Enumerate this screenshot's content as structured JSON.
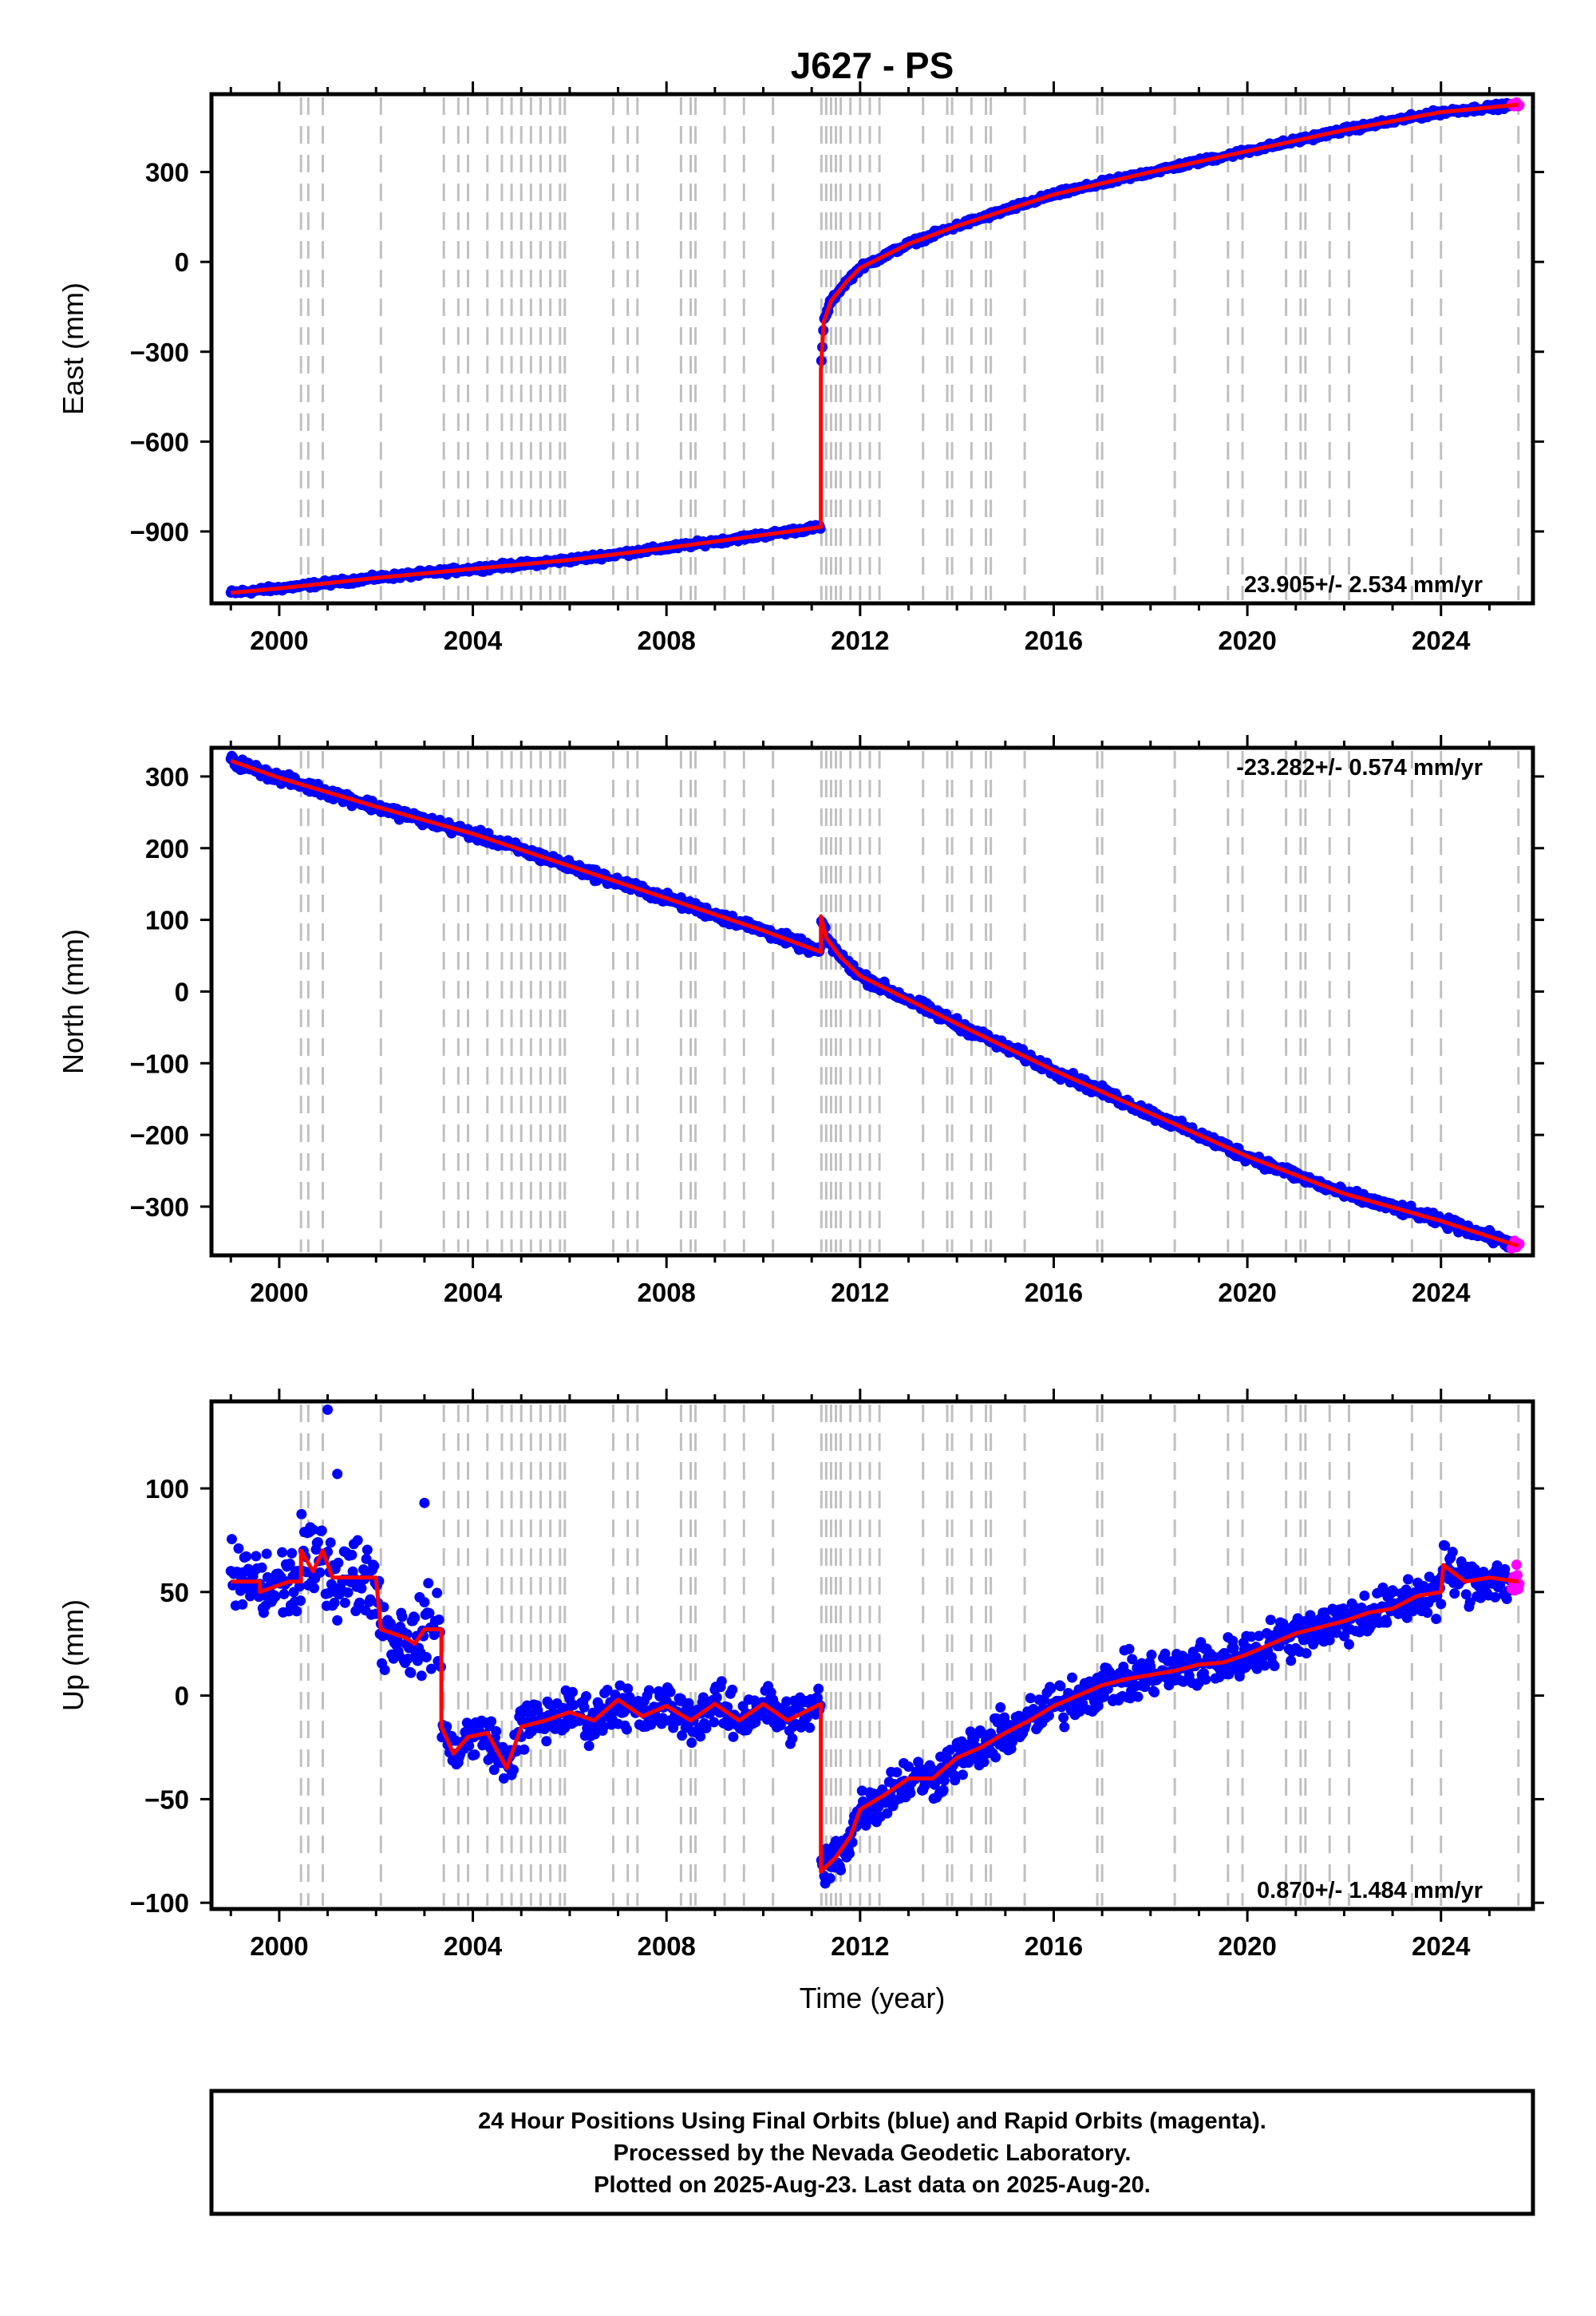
{
  "title": "J627 - PS",
  "xlabel": "Time (year)",
  "x_ticks": [
    "2000",
    "2004",
    "2008",
    "2012",
    "2016",
    "2020",
    "2024"
  ],
  "colors": {
    "final": "#0000ff",
    "rapid": "#ff00ff",
    "model": "#ff0000",
    "events": "#c0c0c0"
  },
  "footer": {
    "line1": "24 Hour Positions Using Final Orbits (blue) and Rapid Orbits (magenta).",
    "line2": "Processed by the Nevada Geodetic Laboratory.",
    "line3": "Plotted on 2025-Aug-23. Last data on 2025-Aug-20."
  },
  "chart_data": [
    {
      "type": "scatter",
      "component": "east",
      "ylabel": "East (mm)",
      "rate": "23.905+/- 2.534 mm/yr",
      "xlim": [
        1998.6,
        2025.9
      ],
      "ylim": [
        -1140,
        560
      ],
      "y_ticks": [
        "300",
        "0",
        "−300",
        "−600",
        "−900"
      ],
      "y_tick_values": [
        300,
        0,
        -300,
        -600,
        -900
      ],
      "trend": [
        [
          1999.0,
          -1105
        ],
        [
          2000.0,
          -1090
        ],
        [
          2002.0,
          -1055
        ],
        [
          2004.0,
          -1025
        ],
        [
          2006.0,
          -995
        ],
        [
          2008.0,
          -955
        ],
        [
          2010.0,
          -912
        ],
        [
          2011.19,
          -885
        ],
        [
          2011.19,
          -360
        ],
        [
          2011.25,
          -200
        ],
        [
          2011.4,
          -130
        ],
        [
          2011.7,
          -70
        ],
        [
          2012.0,
          -20
        ],
        [
          2013.0,
          60
        ],
        [
          2014.0,
          120
        ],
        [
          2016.0,
          225
        ],
        [
          2018.0,
          300
        ],
        [
          2020.0,
          370
        ],
        [
          2022.0,
          440
        ],
        [
          2024.0,
          500
        ],
        [
          2025.6,
          525
        ]
      ]
    },
    {
      "type": "scatter",
      "component": "north",
      "ylabel": "North (mm)",
      "rate": "-23.282+/- 0.574 mm/yr",
      "xlim": [
        1998.6,
        2025.9
      ],
      "ylim": [
        -368,
        340
      ],
      "y_ticks": [
        "300",
        "200",
        "100",
        "0",
        "−100",
        "−200",
        "−300"
      ],
      "y_tick_values": [
        300,
        200,
        100,
        0,
        -100,
        -200,
        -300
      ],
      "trend": [
        [
          1999.0,
          322
        ],
        [
          2000.0,
          298
        ],
        [
          2002.0,
          258
        ],
        [
          2004.0,
          220
        ],
        [
          2006.0,
          175
        ],
        [
          2008.0,
          130
        ],
        [
          2010.0,
          85
        ],
        [
          2011.19,
          55
        ],
        [
          2011.19,
          105
        ],
        [
          2011.3,
          75
        ],
        [
          2011.6,
          48
        ],
        [
          2012.0,
          22
        ],
        [
          2014.0,
          -45
        ],
        [
          2016.0,
          -110
        ],
        [
          2018.0,
          -170
        ],
        [
          2020.0,
          -230
        ],
        [
          2022.0,
          -282
        ],
        [
          2024.0,
          -320
        ],
        [
          2025.6,
          -355
        ]
      ]
    },
    {
      "type": "scatter",
      "component": "up",
      "ylabel": "Up (mm)",
      "rate": "0.870+/- 1.484 mm/yr",
      "xlim": [
        1998.6,
        2025.9
      ],
      "ylim": [
        -103,
        142
      ],
      "y_ticks": [
        "100",
        "50",
        "0",
        "−50",
        "−100"
      ],
      "y_tick_values": [
        100,
        50,
        0,
        -50,
        -100
      ],
      "outliers": [
        [
          2001.0,
          138
        ],
        [
          2001.2,
          107
        ],
        [
          2003.0,
          93
        ]
      ],
      "trend": [
        [
          1999.0,
          55
        ],
        [
          1999.6,
          55
        ],
        [
          1999.6,
          50
        ],
        [
          2000.2,
          55
        ],
        [
          2000.45,
          55
        ],
        [
          2000.45,
          70
        ],
        [
          2000.7,
          60
        ],
        [
          2000.9,
          70
        ],
        [
          2001.1,
          57
        ],
        [
          2002.0,
          57
        ],
        [
          2002.1,
          32
        ],
        [
          2002.6,
          28
        ],
        [
          2002.8,
          25
        ],
        [
          2003.0,
          32
        ],
        [
          2003.35,
          32
        ],
        [
          2003.35,
          -15
        ],
        [
          2003.6,
          -28
        ],
        [
          2003.9,
          -20
        ],
        [
          2004.3,
          -18
        ],
        [
          2004.7,
          -35
        ],
        [
          2005.0,
          -15
        ],
        [
          2005.5,
          -12
        ],
        [
          2006.0,
          -8
        ],
        [
          2006.5,
          -12
        ],
        [
          2007.0,
          -2
        ],
        [
          2007.5,
          -10
        ],
        [
          2008.0,
          -5
        ],
        [
          2008.5,
          -12
        ],
        [
          2009.0,
          -4
        ],
        [
          2009.5,
          -12
        ],
        [
          2010.0,
          -4
        ],
        [
          2010.5,
          -12
        ],
        [
          2011.19,
          -4
        ],
        [
          2011.19,
          -85
        ],
        [
          2011.5,
          -78
        ],
        [
          2011.8,
          -68
        ],
        [
          2012.0,
          -55
        ],
        [
          2012.5,
          -48
        ],
        [
          2013.0,
          -40
        ],
        [
          2013.5,
          -40
        ],
        [
          2014.0,
          -30
        ],
        [
          2014.5,
          -25
        ],
        [
          2015.0,
          -18
        ],
        [
          2015.5,
          -12
        ],
        [
          2016.0,
          -5
        ],
        [
          2016.5,
          0
        ],
        [
          2017.0,
          5
        ],
        [
          2017.5,
          8
        ],
        [
          2018.0,
          10
        ],
        [
          2018.5,
          12
        ],
        [
          2019.0,
          15
        ],
        [
          2019.5,
          16
        ],
        [
          2020.0,
          20
        ],
        [
          2020.5,
          25
        ],
        [
          2021.0,
          30
        ],
        [
          2021.5,
          33
        ],
        [
          2022.0,
          36
        ],
        [
          2022.5,
          40
        ],
        [
          2023.0,
          42
        ],
        [
          2023.5,
          48
        ],
        [
          2024.0,
          50
        ],
        [
          2024.05,
          63
        ],
        [
          2024.5,
          55
        ],
        [
          2025.0,
          57
        ],
        [
          2025.6,
          55
        ]
      ]
    }
  ]
}
